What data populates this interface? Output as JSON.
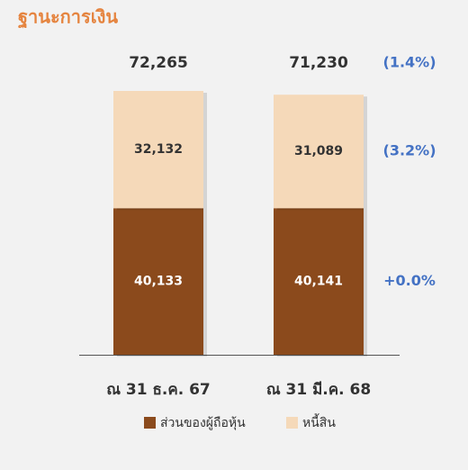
{
  "chart_data": {
    "type": "stacked-bar",
    "title": "ฐานะการเงิน",
    "categories": [
      "ณ 31 ธ.ค. 67",
      "ณ 31 มี.ค. 68"
    ],
    "series": [
      {
        "name": "ส่วนของผู้ถือหุ้น",
        "color": "#8b4a1c",
        "values": [
          40133,
          40141
        ],
        "value_labels": [
          "40,133",
          "40,141"
        ]
      },
      {
        "name": "หนี้สิน",
        "color": "#f5d9b9",
        "values": [
          32132,
          31089
        ],
        "value_labels": [
          "32,132",
          "31,089"
        ]
      }
    ],
    "totals": [
      72265,
      71230
    ],
    "total_labels": [
      "72,265",
      "71,230"
    ],
    "changes": [
      "(1.4%)",
      "(3.2%)",
      "+0.0%"
    ]
  }
}
